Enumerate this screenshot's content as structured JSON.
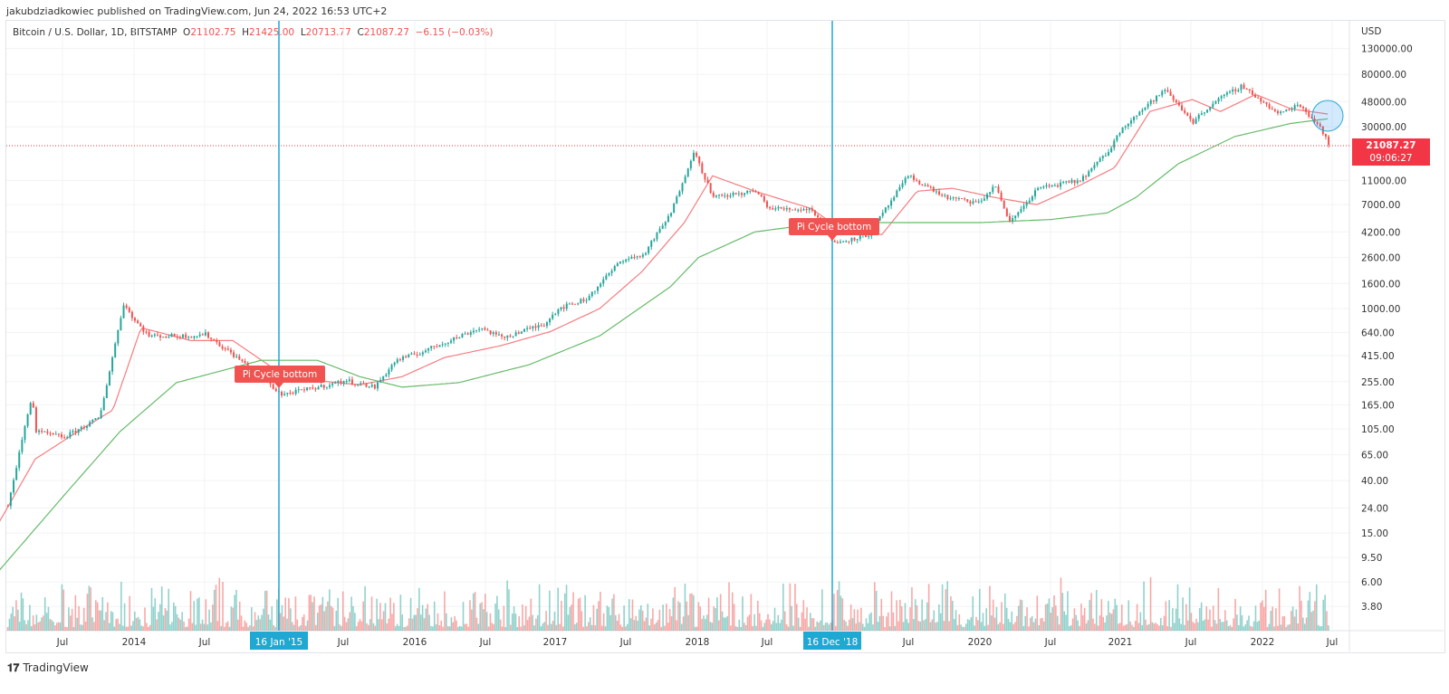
{
  "header": {
    "published": "jakubdziadkowiec published on TradingView.com, Jun 24, 2022 16:53 UTC+2"
  },
  "legend": {
    "symbol": "Bitcoin / U.S. Dollar, 1D, BITSTAMP",
    "o_label": "O",
    "o": "21102.75",
    "h_label": "H",
    "h": "21425.00",
    "l_label": "L",
    "l": "20713.77",
    "c_label": "C",
    "c": "21087.27",
    "change": "−6.15 (−0.03%)"
  },
  "price_badge": {
    "price": "21087.27",
    "countdown": "09:06:27",
    "color": "#f23645"
  },
  "annotations": [
    {
      "text": "Pi Cycle bottom",
      "date": "16 Jan '15"
    },
    {
      "text": "Pi Cycle bottom",
      "date": "16 Dec '18"
    }
  ],
  "footer": {
    "brand": "TradingView",
    "logo": "TV"
  },
  "colors": {
    "up": "#26a69a",
    "down": "#ef5350",
    "ma_red": "#f77c80",
    "ma_green": "#66bb6a",
    "marker": "#1fa8d2"
  },
  "chart_data": {
    "type": "candlestick",
    "scale": "log",
    "ylabel": "USD",
    "y_ticks": [
      "130000.00",
      "80000.00",
      "48000.00",
      "30000.00",
      "11000.00",
      "7000.00",
      "4200.00",
      "2600.00",
      "1600.00",
      "1000.00",
      "640.00",
      "415.00",
      "255.00",
      "165.00",
      "105.00",
      "65.00",
      "40.00",
      "24.00",
      "15.00",
      "9.50",
      "6.00",
      "3.80"
    ],
    "x_ticks": [
      "Jul",
      "2014",
      "Jul",
      "16 Jan '15",
      "Jul",
      "2016",
      "Jul",
      "2017",
      "Jul",
      "2018",
      "Jul",
      "16 Dec '18",
      "Jul",
      "2020",
      "Jul",
      "2021",
      "Jul",
      "2022",
      "Jul"
    ],
    "price": [
      [
        2013.1,
        25
      ],
      [
        2013.27,
        200
      ],
      [
        2013.3,
        100
      ],
      [
        2013.5,
        90
      ],
      [
        2013.75,
        130
      ],
      [
        2013.92,
        1100
      ],
      [
        2014.0,
        800
      ],
      [
        2014.1,
        600
      ],
      [
        2014.4,
        600
      ],
      [
        2014.5,
        620
      ],
      [
        2014.75,
        380
      ],
      [
        2015.04,
        200
      ],
      [
        2015.3,
        230
      ],
      [
        2015.5,
        260
      ],
      [
        2015.7,
        230
      ],
      [
        2015.85,
        380
      ],
      [
        2016.0,
        430
      ],
      [
        2016.45,
        700
      ],
      [
        2016.6,
        580
      ],
      [
        2016.9,
        750
      ],
      [
        2017.0,
        1000
      ],
      [
        2017.2,
        1200
      ],
      [
        2017.45,
        2500
      ],
      [
        2017.6,
        2700
      ],
      [
        2017.8,
        6000
      ],
      [
        2017.96,
        19000
      ],
      [
        2018.1,
        8000
      ],
      [
        2018.4,
        9000
      ],
      [
        2018.5,
        6500
      ],
      [
        2018.8,
        6400
      ],
      [
        2018.96,
        3400
      ],
      [
        2019.2,
        4000
      ],
      [
        2019.48,
        12000
      ],
      [
        2019.75,
        8000
      ],
      [
        2019.98,
        7200
      ],
      [
        2020.1,
        10000
      ],
      [
        2020.2,
        5000
      ],
      [
        2020.4,
        9500
      ],
      [
        2020.7,
        11000
      ],
      [
        2020.9,
        19000
      ],
      [
        2021.0,
        30000
      ],
      [
        2021.3,
        60000
      ],
      [
        2021.5,
        33000
      ],
      [
        2021.65,
        48000
      ],
      [
        2021.85,
        65000
      ],
      [
        2022.0,
        47000
      ],
      [
        2022.1,
        38000
      ],
      [
        2022.25,
        46000
      ],
      [
        2022.4,
        30000
      ],
      [
        2022.47,
        21087.27
      ]
    ],
    "ma_red": [
      [
        2013.0,
        15
      ],
      [
        2013.3,
        60
      ],
      [
        2013.6,
        100
      ],
      [
        2013.85,
        150
      ],
      [
        2014.05,
        700
      ],
      [
        2014.4,
        550
      ],
      [
        2014.7,
        550
      ],
      [
        2015.0,
        320
      ],
      [
        2015.3,
        260
      ],
      [
        2015.6,
        240
      ],
      [
        2015.9,
        280
      ],
      [
        2016.2,
        400
      ],
      [
        2016.6,
        500
      ],
      [
        2016.95,
        650
      ],
      [
        2017.3,
        1000
      ],
      [
        2017.6,
        2000
      ],
      [
        2017.9,
        5000
      ],
      [
        2018.1,
        12000
      ],
      [
        2018.4,
        9000
      ],
      [
        2018.8,
        6500
      ],
      [
        2019.0,
        4500
      ],
      [
        2019.3,
        4000
      ],
      [
        2019.55,
        9000
      ],
      [
        2019.8,
        9500
      ],
      [
        2020.1,
        8000
      ],
      [
        2020.4,
        7000
      ],
      [
        2020.7,
        10000
      ],
      [
        2020.95,
        14000
      ],
      [
        2021.2,
        40000
      ],
      [
        2021.5,
        50000
      ],
      [
        2021.7,
        40000
      ],
      [
        2021.95,
        55000
      ],
      [
        2022.2,
        42000
      ],
      [
        2022.47,
        38000
      ]
    ],
    "ma_green": [
      [
        2013.0,
        6.5
      ],
      [
        2013.5,
        30
      ],
      [
        2013.9,
        100
      ],
      [
        2014.3,
        250
      ],
      [
        2014.9,
        380
      ],
      [
        2015.3,
        380
      ],
      [
        2015.6,
        280
      ],
      [
        2015.9,
        230
      ],
      [
        2016.3,
        250
      ],
      [
        2016.8,
        350
      ],
      [
        2017.3,
        600
      ],
      [
        2017.8,
        1500
      ],
      [
        2018.0,
        2600
      ],
      [
        2018.4,
        4200
      ],
      [
        2018.9,
        5000
      ],
      [
        2019.5,
        5000
      ],
      [
        2020.0,
        5000
      ],
      [
        2020.5,
        5300
      ],
      [
        2020.9,
        6000
      ],
      [
        2021.1,
        8000
      ],
      [
        2021.4,
        15000
      ],
      [
        2021.8,
        25000
      ],
      [
        2022.2,
        32000
      ],
      [
        2022.47,
        35000
      ]
    ],
    "last_price": 21087.27,
    "vertical_markers": [
      2015.04,
      2018.96
    ]
  }
}
